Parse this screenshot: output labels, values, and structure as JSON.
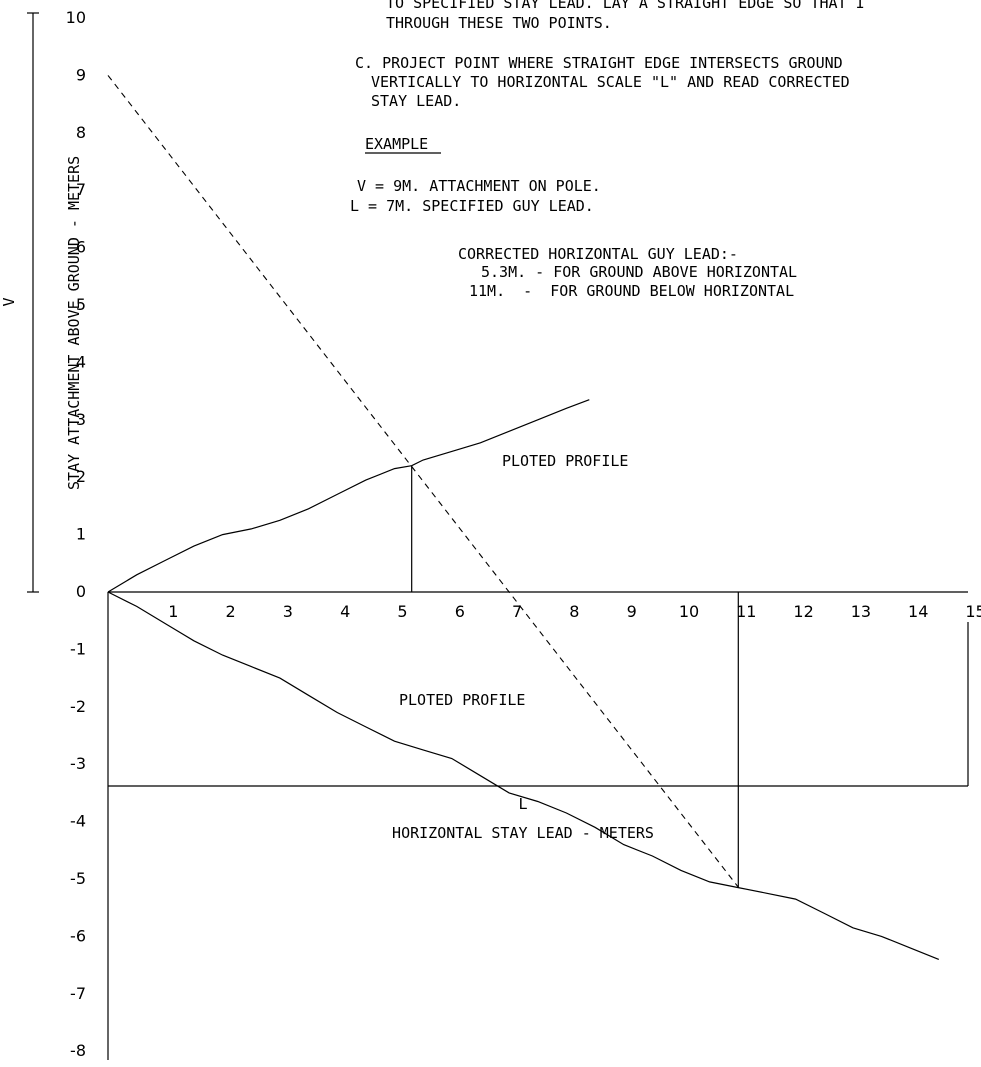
{
  "notes": {
    "b_line1": "TO SPECIFIED STAY LEAD. LAY A STRAIGHT EDGE SO THAT I",
    "b_line2": "THROUGH THESE TWO POINTS.",
    "c_line1": "C. PROJECT POINT WHERE STRAIGHT EDGE INTERSECTS GROUND",
    "c_line2": "VERTICALLY TO HORIZONTAL SCALE \"L\" AND READ CORRECTED",
    "c_line3": "STAY LEAD.",
    "example_heading": "EXAMPLE",
    "example_v": "V = 9M. ATTACHMENT ON POLE.",
    "example_l": "L = 7M. SPECIFIED GUY LEAD.",
    "corrected_heading": "CORRECTED HORIZONTAL GUY LEAD:-",
    "corrected_above": "5.3M. - FOR GROUND ABOVE HORIZONTAL",
    "corrected_below": "11M.  -  FOR GROUND BELOW HORIZONTAL"
  },
  "labels": {
    "y_axis_title": "STAY ATTACHMENT ABOVE GROUND - METERS",
    "y_axis_symbol": "V",
    "x_axis_symbol": "L",
    "x_axis_title": "HORIZONTAL STAY LEAD - METERS",
    "profile_above": "PLOTED PROFILE",
    "profile_below": "PLOTED PROFILE"
  },
  "chart_data": {
    "type": "line",
    "x_ticks": [
      1,
      2,
      3,
      4,
      5,
      6,
      7,
      8,
      9,
      10,
      11,
      12,
      13,
      14,
      15
    ],
    "y_ticks": [
      10,
      9,
      8,
      7,
      6,
      5,
      4,
      3,
      2,
      1,
      0,
      -1,
      -2,
      -3,
      -4,
      -5,
      -6,
      -7,
      -8
    ],
    "xlim": [
      0,
      15
    ],
    "ylim": [
      -8,
      10
    ],
    "series": [
      {
        "name": "PLOTED PROFILE",
        "x": [
          0,
          0.5,
          1,
          1.5,
          2,
          2.5,
          3,
          3.5,
          4,
          4.5,
          5,
          5.3,
          5.5,
          6,
          6.5,
          7,
          7.5,
          8,
          8.4
        ],
        "y": [
          0,
          0.3,
          0.55,
          0.8,
          1.0,
          1.1,
          1.25,
          1.45,
          1.7,
          1.95,
          2.15,
          2.2,
          2.3,
          2.45,
          2.6,
          2.8,
          3.0,
          3.2,
          3.35
        ]
      },
      {
        "name": "PLOTED PROFILE",
        "x": [
          0,
          0.5,
          1,
          1.5,
          2,
          2.5,
          3,
          3.5,
          4,
          4.5,
          5,
          5.5,
          6,
          6.5,
          7,
          7.5,
          8,
          8.5,
          9,
          9.5,
          10,
          10.5,
          11,
          11.5,
          12,
          12.5,
          13,
          13.5,
          14,
          14.5
        ],
        "y": [
          0,
          -0.25,
          -0.55,
          -0.85,
          -1.1,
          -1.3,
          -1.5,
          -1.8,
          -2.1,
          -2.35,
          -2.6,
          -2.75,
          -2.9,
          -3.2,
          -3.5,
          -3.65,
          -3.85,
          -4.1,
          -4.4,
          -4.6,
          -4.85,
          -5.05,
          -5.15,
          -5.25,
          -5.35,
          -5.6,
          -5.85,
          -6.0,
          -6.2,
          -6.4
        ]
      }
    ],
    "stay_line": {
      "x": [
        0,
        7
      ],
      "y": [
        9,
        0
      ]
    },
    "projections": [
      {
        "x": 5.3,
        "y": 2.2
      },
      {
        "x": 11,
        "y": -5.15
      }
    ],
    "grid": false
  }
}
